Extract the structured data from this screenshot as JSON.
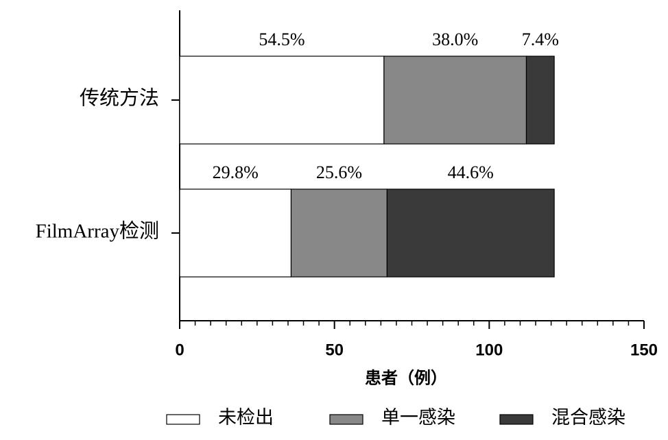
{
  "chart_data": {
    "type": "stacked-bar-horizontal",
    "categories": [
      "传统方法",
      "FilmArray检测"
    ],
    "series": [
      {
        "name": "未检出",
        "color": "#ffffff",
        "values": [
          66,
          36
        ],
        "share_labels": [
          "54.5%",
          "29.8%"
        ]
      },
      {
        "name": "单一感染",
        "color": "#888888",
        "values": [
          46,
          31
        ],
        "share_labels": [
          "38.0%",
          "25.6%"
        ]
      },
      {
        "name": "混合感染",
        "color": "#3a3a3a",
        "values": [
          9,
          54
        ],
        "share_labels": [
          "7.4%",
          "44.6%"
        ]
      }
    ],
    "xlabel": "患者（例）",
    "xlim": [
      0,
      150
    ],
    "xticks": [
      0,
      50,
      100,
      150
    ],
    "xminorticks": [
      5,
      10,
      15,
      20,
      25,
      30,
      35,
      40,
      45,
      55,
      60,
      65,
      70,
      75,
      80,
      85,
      90,
      95,
      105,
      110,
      115,
      120,
      125,
      130,
      135,
      140,
      145
    ],
    "legend": "bottom"
  }
}
